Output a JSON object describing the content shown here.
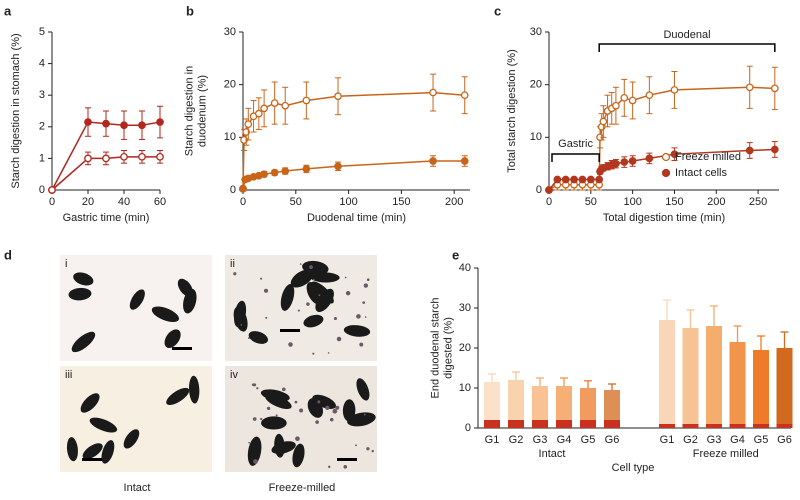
{
  "chart_data": [
    {
      "type": "line",
      "panel": "a",
      "xlabel": "Gastric time (min)",
      "ylabel": [
        "Starch digestion in stomach (%)"
      ],
      "xlim": [
        0,
        60
      ],
      "ylim": [
        0,
        5
      ],
      "xticks": [
        0,
        20,
        40,
        60
      ],
      "yticks": [
        0,
        1,
        2,
        3,
        4,
        5
      ],
      "series": [
        {
          "color": "#b3261e",
          "marker": "filled",
          "x": [
            0,
            20,
            30,
            40,
            50,
            60
          ],
          "values": [
            0,
            2.15,
            2.1,
            2.05,
            2.05,
            2.15
          ],
          "errors": [
            0,
            0.45,
            0.4,
            0.45,
            0.45,
            0.5
          ]
        },
        {
          "color": "#b3261e",
          "marker": "open",
          "x": [
            0,
            20,
            30,
            40,
            50,
            60
          ],
          "values": [
            0,
            1.0,
            1.0,
            1.05,
            1.05,
            1.05
          ],
          "errors": [
            0,
            0.2,
            0.2,
            0.2,
            0.2,
            0.2
          ]
        }
      ]
    },
    {
      "type": "line",
      "panel": "b",
      "xlabel": "Duodenal time (min)",
      "ylabel": [
        "Starch digestion in",
        "duodenum (%)"
      ],
      "xlim": [
        0,
        215
      ],
      "ylim": [
        0,
        30
      ],
      "xticks": [
        0,
        50,
        100,
        150,
        200
      ],
      "yticks": [
        0,
        10,
        20,
        30
      ],
      "series": [
        {
          "color": "#c8651b",
          "marker": "open",
          "x": [
            0,
            1,
            3,
            5,
            10,
            15,
            20,
            30,
            40,
            60,
            90,
            180,
            210
          ],
          "values": [
            0.3,
            9.5,
            11,
            12.5,
            14,
            14.5,
            15.5,
            16.5,
            16,
            17,
            17.8,
            18.5,
            18
          ],
          "errors": [
            0.2,
            2,
            2.5,
            3,
            3,
            3,
            3.5,
            4,
            3.5,
            3.5,
            3.5,
            3.5,
            3.5
          ]
        },
        {
          "color": "#c8651b",
          "marker": "filled",
          "x": [
            0,
            2,
            5,
            10,
            15,
            20,
            30,
            40,
            60,
            90,
            180,
            210
          ],
          "values": [
            0.2,
            2,
            2.2,
            2.5,
            2.7,
            3,
            3.3,
            3.6,
            4,
            4.5,
            5.5,
            5.5
          ],
          "errors": [
            0.1,
            0.3,
            0.3,
            0.4,
            0.4,
            0.5,
            0.5,
            0.6,
            0.7,
            0.8,
            1,
            1
          ]
        }
      ]
    },
    {
      "type": "line",
      "panel": "c",
      "xlabel": "Total digestion time (min)",
      "ylabel": [
        "Total starch digestion (%)"
      ],
      "xlim": [
        0,
        275
      ],
      "ylim": [
        0,
        30
      ],
      "xticks": [
        0,
        50,
        100,
        150,
        200,
        250
      ],
      "yticks": [
        0,
        10,
        20,
        30
      ],
      "annotations": [
        "Gastric",
        "Duodenal"
      ],
      "series": [
        {
          "name": "Freeze milled",
          "color": "#c8651b",
          "marker": "open",
          "x": [
            0,
            10,
            20,
            30,
            40,
            50,
            60,
            61,
            63,
            65,
            70,
            75,
            80,
            90,
            100,
            120,
            150,
            240,
            270
          ],
          "values": [
            0,
            1,
            1,
            1,
            1,
            1,
            1,
            10,
            12,
            13,
            15,
            15.5,
            16,
            17.5,
            17,
            18,
            19,
            19.5,
            19.3
          ],
          "errors": [
            0,
            1,
            1,
            1,
            1,
            1,
            1,
            2,
            2.5,
            3,
            3,
            3,
            3.5,
            3.5,
            3.5,
            3.5,
            3.5,
            4,
            4
          ]
        },
        {
          "name": "Intact cells",
          "color": "#b3361e",
          "marker": "filled",
          "x": [
            0,
            10,
            20,
            30,
            40,
            50,
            60,
            61,
            63,
            65,
            70,
            75,
            80,
            90,
            100,
            120,
            150,
            240,
            270
          ],
          "values": [
            0,
            2,
            2,
            2,
            2,
            2,
            2,
            3.5,
            4,
            4.2,
            4.5,
            4.8,
            5,
            5.3,
            5.5,
            6,
            6.8,
            7.5,
            7.7
          ],
          "errors": [
            0,
            0.3,
            0.3,
            0.3,
            0.3,
            0.3,
            0.3,
            0.5,
            0.5,
            0.6,
            0.7,
            0.8,
            0.8,
            1,
            1,
            1,
            1.2,
            1.5,
            1.5
          ]
        }
      ]
    },
    {
      "type": "images",
      "panel": "d",
      "images": [
        "i",
        "ii",
        "iii",
        "iv"
      ],
      "captions": [
        "Intact",
        "Freeze-milled"
      ]
    },
    {
      "type": "bar",
      "panel": "e",
      "xlabel": "Cell type",
      "ylabel": [
        "End duodenal starch",
        "digested (%)"
      ],
      "ylim": [
        0,
        40
      ],
      "yticks": [
        0,
        10,
        20,
        30,
        40
      ],
      "colors": [
        "#f9d6b8",
        "#f7c393",
        "#f5ad6e",
        "#f2944a",
        "#ee7a2a",
        "#d2691e"
      ],
      "inner_color": "#c8321e",
      "groups": [
        {
          "name": "Intact",
          "categories": [
            "G1",
            "G2",
            "G3",
            "G4",
            "G5",
            "G6"
          ],
          "values": [
            11.5,
            12,
            10.5,
            10.5,
            10,
            9.5
          ],
          "errors": [
            2,
            2,
            2,
            2,
            1.8,
            1.5
          ],
          "inner_values": [
            2,
            2,
            2,
            2,
            2,
            2
          ]
        },
        {
          "name": "Freeze milled",
          "categories": [
            "G1",
            "G2",
            "G3",
            "G4",
            "G5",
            "G6"
          ],
          "values": [
            27,
            25,
            25.5,
            21.5,
            19.5,
            20
          ],
          "errors": [
            5,
            4.5,
            5,
            4,
            3.5,
            4
          ],
          "inner_values": [
            1,
            1,
            1,
            1,
            1,
            1
          ]
        }
      ]
    }
  ]
}
